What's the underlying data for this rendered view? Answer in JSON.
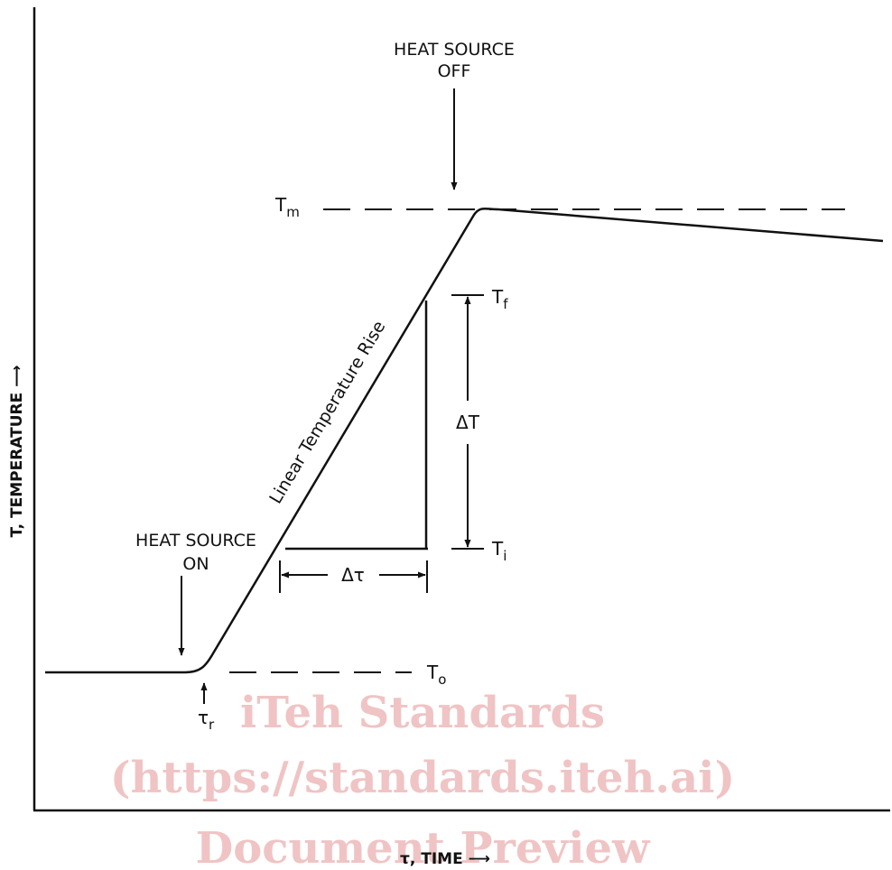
{
  "labels": {
    "heat_off_line1": "HEAT SOURCE",
    "heat_off_line2": "OFF",
    "heat_on_line1": "HEAT SOURCE",
    "heat_on_line2": "ON",
    "tm_base": "T",
    "tm_sub": "m",
    "tf_base": "T",
    "tf_sub": "f",
    "ti_base": "T",
    "ti_sub": "i",
    "to_base": "T",
    "to_sub": "o",
    "tau_r_base": "τ",
    "tau_r_sub": "r",
    "delta_t": "ΔT",
    "delta_tau": "Δτ",
    "linear_rise": "Linear Temperature Rise",
    "y_axis": "T, TEMPERATURE ⟶",
    "x_axis": "τ, TIME ⟶"
  },
  "watermark": {
    "line1": "iTeh Standards",
    "line2": "(https://standards.iteh.ai)",
    "line3": "Document Preview"
  }
}
